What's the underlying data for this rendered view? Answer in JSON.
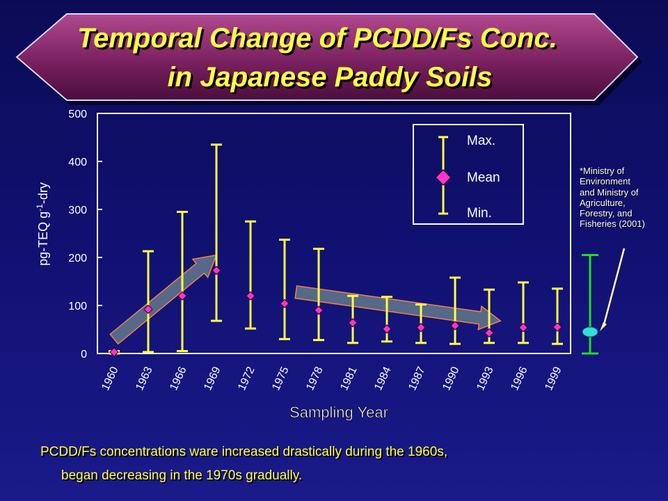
{
  "title": {
    "line1": "Temporal Change of PCDD/Fs Conc.",
    "line2": "in Japanese Paddy Soils"
  },
  "footnote": "*Ministry of\nEnvironment\nand Ministry of\nAgriculture,\nForestry, and\nFisheries (2001)",
  "caption": {
    "line1": "PCDD/Fs concentrations ware increased drastically during the 1960s,",
    "line2": "began decreasing in the 1970s gradually."
  },
  "colors": {
    "title_text": "#ffff44",
    "error_bar": "#ffff44",
    "mean_marker": "#ff33cc",
    "trend_arrow": "#5a6e8a",
    "trend_arrow_edge": "#ff8844",
    "legend_border": "#ffffff",
    "reference_bar": "#22dd22",
    "reference_marker": "#33dddd"
  },
  "chart_data": {
    "type": "errorbar",
    "xlabel": "Sampling Year",
    "ylabel_main": "pg-TEQ g",
    "ylabel_sup": "-1",
    "ylabel_tail": "-dry",
    "ylim": [
      0,
      500
    ],
    "yticks": [
      "0",
      "100",
      "200",
      "300",
      "400",
      "500"
    ],
    "xticks": [
      "1960",
      "1963",
      "1966",
      "1969",
      "1972",
      "1975",
      "1978",
      "1981",
      "1984",
      "1987",
      "1990",
      "1993",
      "1996",
      "1999"
    ],
    "grid": false,
    "legend": {
      "placement": "top-right",
      "max": "Max.",
      "mean": "Mean",
      "min": "Min."
    },
    "points": [
      {
        "year": 1960,
        "mean": 3,
        "min": 0,
        "max": 5
      },
      {
        "year": 1963,
        "mean": 92,
        "min": 3,
        "max": 213
      },
      {
        "year": 1966,
        "mean": 120,
        "min": 5,
        "max": 295
      },
      {
        "year": 1969,
        "mean": 173,
        "min": 68,
        "max": 435
      },
      {
        "year": 1972,
        "mean": 120,
        "min": 52,
        "max": 275
      },
      {
        "year": 1975,
        "mean": 104,
        "min": 30,
        "max": 237
      },
      {
        "year": 1978,
        "mean": 90,
        "min": 28,
        "max": 218
      },
      {
        "year": 1981,
        "mean": 64,
        "min": 22,
        "max": 120
      },
      {
        "year": 1984,
        "mean": 51,
        "min": 25,
        "max": 118
      },
      {
        "year": 1987,
        "mean": 54,
        "min": 22,
        "max": 102
      },
      {
        "year": 1990,
        "mean": 58,
        "min": 20,
        "max": 158
      },
      {
        "year": 1993,
        "mean": 43,
        "min": 22,
        "max": 133
      },
      {
        "year": 1996,
        "mean": 54,
        "min": 22,
        "max": 148
      },
      {
        "year": 1999,
        "mean": 55,
        "min": 20,
        "max": 135
      }
    ],
    "reference": {
      "mean": 45,
      "min": 0,
      "max": 205
    },
    "trend_arrows": [
      {
        "from_year": 1960,
        "from_value": 30,
        "to_year": 1969,
        "to_value": 205
      },
      {
        "from_year": 1976,
        "from_value": 128,
        "to_year": 1994,
        "to_value": 68
      }
    ]
  }
}
